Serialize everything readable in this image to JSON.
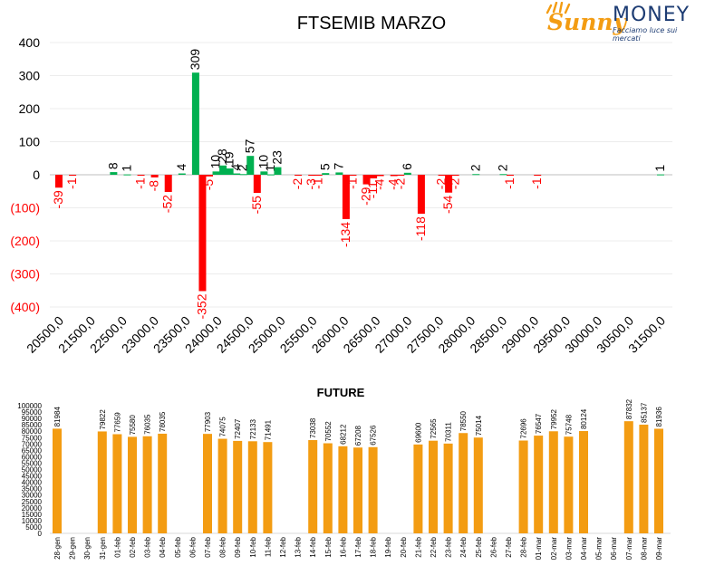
{
  "logo": {
    "sunny": "Sunny",
    "money": "MONEY",
    "tagline": "Facciamo luce sui mercati",
    "colors": {
      "sunny": "#f39c12",
      "money": "#1d3c73"
    }
  },
  "chart_data": [
    {
      "type": "bar",
      "title": "FTSEMIB MARZO",
      "xlabel": "",
      "ylabel": "",
      "ylim": [
        -400,
        400
      ],
      "yticks": [
        "400",
        "300",
        "200",
        "100",
        "0",
        "(100)",
        "(200)",
        "(300)",
        "(400)"
      ],
      "grid": true,
      "colors": {
        "positive": "#00b050",
        "negative": "#ff0000"
      },
      "x_tick_labels": [
        "20500,0",
        "21500,0",
        "22500,0",
        "23000,0",
        "23500,0",
        "24000,0",
        "24500,0",
        "25000,0",
        "25500,0",
        "26000,0",
        "26500,0",
        "27000,0",
        "27500,0",
        "28000,0",
        "28500,0",
        "29000,0",
        "29500,0",
        "30000,0",
        "30500,0",
        "31500,0"
      ],
      "bars": [
        {
          "strike": 20500,
          "value": -39,
          "label": "-39"
        },
        {
          "strike": 20750,
          "value": -1,
          "label": "-1"
        },
        {
          "strike": 21500,
          "value": 8,
          "label": "8"
        },
        {
          "strike": 21750,
          "value": 1,
          "label": "1"
        },
        {
          "strike": 22000,
          "value": -1,
          "label": "-1"
        },
        {
          "strike": 22250,
          "value": -8,
          "label": "-8"
        },
        {
          "strike": 22500,
          "value": -52,
          "label": "-52"
        },
        {
          "strike": 22750,
          "value": 4,
          "label": "4"
        },
        {
          "strike": 23000,
          "value": 309,
          "label": "309"
        },
        {
          "strike": 23125,
          "value": -352,
          "label": "-352"
        },
        {
          "strike": 23250,
          "value": -5,
          "label": "-5"
        },
        {
          "strike": 23375,
          "value": 10,
          "label": "10"
        },
        {
          "strike": 23500,
          "value": 28,
          "label": "28"
        },
        {
          "strike": 23625,
          "value": 19,
          "label": "19"
        },
        {
          "strike": 23750,
          "value": 4,
          "label": "4"
        },
        {
          "strike": 23875,
          "value": 2,
          "label": "2"
        },
        {
          "strike": 24000,
          "value": 57,
          "label": "57"
        },
        {
          "strike": 24125,
          "value": -55,
          "label": "-55"
        },
        {
          "strike": 24250,
          "value": 10,
          "label": "10"
        },
        {
          "strike": 24375,
          "value": 1,
          "label": "1"
        },
        {
          "strike": 24500,
          "value": 23,
          "label": "23"
        },
        {
          "strike": 24875,
          "value": -2,
          "label": "-2"
        },
        {
          "strike": 25125,
          "value": -3,
          "label": "-3"
        },
        {
          "strike": 25250,
          "value": -1,
          "label": "-1"
        },
        {
          "strike": 25375,
          "value": 5,
          "label": "5"
        },
        {
          "strike": 25625,
          "value": 7,
          "label": "7"
        },
        {
          "strike": 25750,
          "value": -134,
          "label": "-134"
        },
        {
          "strike": 25875,
          "value": -1,
          "label": "-1"
        },
        {
          "strike": 26125,
          "value": -29,
          "label": "-29"
        },
        {
          "strike": 26250,
          "value": -11,
          "label": "-11"
        },
        {
          "strike": 26375,
          "value": -4,
          "label": "-4"
        },
        {
          "strike": 26625,
          "value": -4,
          "label": "-4"
        },
        {
          "strike": 26750,
          "value": -2,
          "label": "-2"
        },
        {
          "strike": 26875,
          "value": 6,
          "label": "6"
        },
        {
          "strike": 27125,
          "value": -118,
          "label": "-118"
        },
        {
          "strike": 27500,
          "value": -2,
          "label": "-2"
        },
        {
          "strike": 27625,
          "value": -54,
          "label": "-54"
        },
        {
          "strike": 27750,
          "value": -2,
          "label": "-2"
        },
        {
          "strike": 28125,
          "value": 2,
          "label": "2"
        },
        {
          "strike": 28625,
          "value": 2,
          "label": "2"
        },
        {
          "strike": 28750,
          "value": -1,
          "label": "-1"
        },
        {
          "strike": 29250,
          "value": -1,
          "label": "-1"
        },
        {
          "strike": 31500,
          "value": 1,
          "label": "1"
        }
      ]
    },
    {
      "type": "bar",
      "title": "FUTURE",
      "xlabel": "",
      "ylabel": "",
      "ylim": [
        0,
        100000
      ],
      "yticks": [
        "100000",
        "95000",
        "90000",
        "85000",
        "80000",
        "75000",
        "70000",
        "65000",
        "60000",
        "55000",
        "50000",
        "45000",
        "40000",
        "35000",
        "30000",
        "25000",
        "20000",
        "15000",
        "10000",
        "5000",
        "0"
      ],
      "grid": false,
      "color": "#f39c12",
      "categories": [
        "28-gen",
        "29-gen",
        "30-gen",
        "31-gen",
        "01-feb",
        "02-feb",
        "03-feb",
        "04-feb",
        "05-feb",
        "06-feb",
        "07-feb",
        "08-feb",
        "09-feb",
        "10-feb",
        "11-feb",
        "12-feb",
        "13-feb",
        "14-feb",
        "15-feb",
        "16-feb",
        "17-feb",
        "18-feb",
        "19-feb",
        "20-feb",
        "21-feb",
        "22-feb",
        "23-feb",
        "24-feb",
        "25-feb",
        "26-feb",
        "27-feb",
        "28-feb",
        "01-mar",
        "02-mar",
        "03-mar",
        "04-mar",
        "05-mar",
        "06-mar",
        "07-mar",
        "08-mar",
        "09-mar"
      ],
      "values": [
        81984,
        null,
        null,
        79822,
        77659,
        75580,
        76035,
        78035,
        null,
        null,
        77903,
        74075,
        72407,
        72133,
        71491,
        null,
        null,
        73038,
        70552,
        68212,
        67208,
        67526,
        null,
        null,
        69600,
        72565,
        70311,
        78550,
        75014,
        null,
        null,
        72696,
        76547,
        79952,
        75748,
        80124,
        null,
        null,
        87832,
        85137,
        81936
      ]
    }
  ]
}
